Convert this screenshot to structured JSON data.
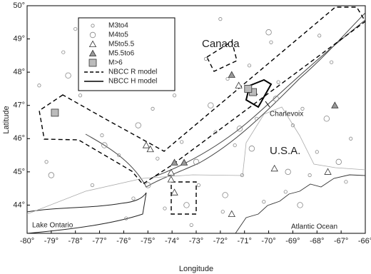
{
  "chart_data": {
    "type": "map",
    "xlabel": "Longitude",
    "ylabel": "Latitude",
    "xlim": [
      -80,
      -66
    ],
    "ylim": [
      43.15,
      50
    ],
    "xticks": [
      {
        "value": -80,
        "label": "-80°"
      },
      {
        "value": -79,
        "label": "-79°"
      },
      {
        "value": -78,
        "label": "-78°"
      },
      {
        "value": -77,
        "label": "-77°"
      },
      {
        "value": -76,
        "label": "-76°"
      },
      {
        "value": -75,
        "label": "-75°"
      },
      {
        "value": -74,
        "label": "-74°"
      },
      {
        "value": -73,
        "label": "-73°"
      },
      {
        "value": -72,
        "label": "-72°"
      },
      {
        "value": -71,
        "label": "-71°"
      },
      {
        "value": -70,
        "label": "-70°"
      },
      {
        "value": -69,
        "label": "-69°"
      },
      {
        "value": -68,
        "label": "-68°"
      },
      {
        "value": -67,
        "label": "-67°"
      },
      {
        "value": -66,
        "label": "-66°"
      }
    ],
    "yticks": [
      {
        "value": 44,
        "label": "44°"
      },
      {
        "value": 45,
        "label": "45°"
      },
      {
        "value": 46,
        "label": "46°"
      },
      {
        "value": 47,
        "label": "47°"
      },
      {
        "value": 48,
        "label": "48°"
      },
      {
        "value": 49,
        "label": "49°"
      },
      {
        "value": 50,
        "label": "50°"
      }
    ],
    "places": [
      "Canada",
      "U.S.A.",
      "Charlevoix",
      "Lake Ontario",
      "Atlantic Ocean"
    ],
    "zones": [
      "NBCC R model",
      "NBCC H model"
    ],
    "series": [
      {
        "name": "M3to4",
        "marker": "circle",
        "size": 2.2,
        "color": "#888",
        "x": [
          -78.5,
          -77.8,
          -76.9,
          -76.2,
          -75.6,
          -74.8,
          -74.3,
          -73.6,
          -72.9,
          -72.2,
          -71.7,
          -71.1,
          -70.5,
          -69.9,
          -69.3,
          -68.6,
          -68.0,
          -67.4,
          -66.8,
          -79.2,
          -78.0,
          -76.5,
          -75.2,
          -73.9,
          -72.6,
          -71.4,
          -70.2,
          -69.0,
          -67.9,
          -66.6,
          -77.3,
          -75.9,
          -74.6,
          -73.2,
          -71.9,
          -70.8,
          -69.6,
          -68.3,
          -79.5,
          -72.0
        ],
        "y": [
          48.6,
          47.3,
          46.1,
          45.5,
          44.2,
          46.9,
          43.9,
          45.9,
          44.6,
          46.2,
          47.8,
          44.9,
          46.6,
          48.9,
          44.4,
          46.9,
          45.6,
          48.3,
          44.7,
          45.3,
          49.3,
          47.7,
          48.8,
          47.3,
          48.4,
          45.8,
          44.1,
          46.4,
          49.1,
          46.0,
          44.6,
          43.6,
          45.4,
          43.4,
          43.8,
          48.2,
          47.7,
          44.9,
          47.6,
          49.6
        ]
      },
      {
        "name": "M4to5",
        "marker": "circle",
        "size": 3.8,
        "color": "#888",
        "x": [
          -78.3,
          -76.8,
          -75.4,
          -74.1,
          -73.0,
          -71.8,
          -70.7,
          -69.7,
          -68.7,
          -67.6,
          -77.5,
          -75.0,
          -72.4,
          -70.0,
          -67.1,
          -79.0,
          -74.7,
          -73.4,
          -71.2,
          -69.2
        ],
        "y": [
          47.9,
          45.8,
          46.4,
          48.1,
          45.3,
          44.3,
          45.7,
          47.2,
          44.0,
          46.6,
          48.9,
          44.6,
          47.0,
          49.2,
          45.3,
          44.9,
          47.6,
          44.0,
          46.3,
          45.0
        ]
      },
      {
        "name": "M5to5.5",
        "marker": "triangle",
        "size": 4.5,
        "color": "#fff",
        "x": [
          -75.07,
          -74.9,
          -74.04,
          -73.9,
          -69.76,
          -71.53,
          -67.55,
          -74.04,
          -71.24
        ],
        "y": [
          45.8,
          45.68,
          44.98,
          44.38,
          45.1,
          43.73,
          45.0,
          44.77,
          47.6
        ]
      },
      {
        "name": "M5.5to6",
        "marker": "triangle",
        "size": 4.5,
        "color": "#999",
        "x": [
          -71.53,
          -73.9,
          -73.5,
          -67.26,
          -70.6
        ],
        "y": [
          47.92,
          45.28,
          45.28,
          47.0,
          47.4
        ]
      },
      {
        "name": "M>6",
        "marker": "square",
        "size": 5,
        "color": "#bbb",
        "x": [
          -78.85,
          -70.65,
          -70.85
        ],
        "y": [
          46.78,
          47.4,
          47.5
        ]
      }
    ]
  }
}
